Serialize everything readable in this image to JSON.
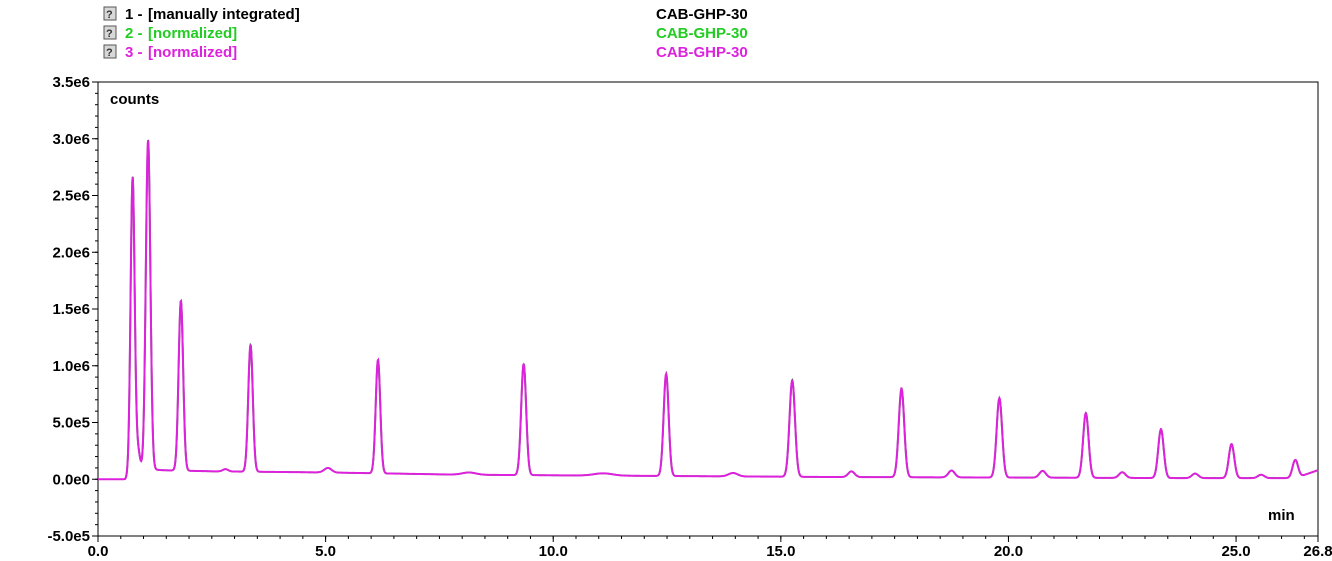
{
  "chart_data": {
    "type": "line",
    "xlabel": "min",
    "ylabel": "counts",
    "xlim": [
      0,
      26.8
    ],
    "ylim": [
      -500000,
      3500000
    ],
    "x_ticks": [
      {
        "value": 0,
        "label": "0.0"
      },
      {
        "value": 5,
        "label": "5.0"
      },
      {
        "value": 10,
        "label": "10.0"
      },
      {
        "value": 15,
        "label": "15.0"
      },
      {
        "value": 20,
        "label": "20.0"
      },
      {
        "value": 25,
        "label": "25.0"
      },
      {
        "value": 26.8,
        "label": "26.8"
      }
    ],
    "y_ticks": [
      {
        "value": 3500000,
        "label": "3.5e6"
      },
      {
        "value": 3000000,
        "label": "3.0e6"
      },
      {
        "value": 2500000,
        "label": "2.5e6"
      },
      {
        "value": 2000000,
        "label": "2.0e6"
      },
      {
        "value": 1500000,
        "label": "1.5e6"
      },
      {
        "value": 1000000,
        "label": "1.0e6"
      },
      {
        "value": 500000,
        "label": "5.0e5"
      },
      {
        "value": 0,
        "label": "0.0e0"
      },
      {
        "value": -500000,
        "label": "-5.0e5"
      }
    ],
    "series": [
      {
        "number": "1 -",
        "name": "[manually integrated]",
        "sample": "CAB-GHP-30",
        "color": "#000000",
        "line_color": "#3a5a3a",
        "scale": 1.0
      },
      {
        "number": "2 -",
        "name": "[normalized]",
        "sample": "CAB-GHP-30",
        "color": "#22cc22",
        "line_color": "#22cc22",
        "scale": 0.99
      },
      {
        "number": "3 -",
        "name": "[normalized]",
        "sample": "CAB-GHP-30",
        "color": "#dd22dd",
        "line_color": "#dd22dd",
        "scale": 1.0
      }
    ],
    "baseline": [
      [
        0,
        0
      ],
      [
        0.6,
        0
      ],
      [
        0.85,
        100000
      ],
      [
        1.4,
        80000
      ],
      [
        2.5,
        70000
      ],
      [
        5,
        60000
      ],
      [
        8,
        40000
      ],
      [
        12,
        30000
      ],
      [
        16,
        20000
      ],
      [
        20,
        15000
      ],
      [
        24,
        10000
      ],
      [
        26.3,
        10000
      ],
      [
        26.8,
        80000
      ]
    ],
    "peaks": [
      {
        "t": 0.76,
        "h": 2600000,
        "w": 0.045
      },
      {
        "t": 0.88,
        "h": 150000,
        "w": 0.04
      },
      {
        "t": 1.1,
        "h": 2900000,
        "w": 0.05
      },
      {
        "t": 1.82,
        "h": 1500000,
        "w": 0.05
      },
      {
        "t": 2.8,
        "h": 20000,
        "w": 0.06
      },
      {
        "t": 3.35,
        "h": 1120000,
        "w": 0.05
      },
      {
        "t": 5.05,
        "h": 40000,
        "w": 0.08
      },
      {
        "t": 6.15,
        "h": 1000000,
        "w": 0.05
      },
      {
        "t": 8.15,
        "h": 20000,
        "w": 0.15
      },
      {
        "t": 9.35,
        "h": 980000,
        "w": 0.055
      },
      {
        "t": 11.1,
        "h": 20000,
        "w": 0.2
      },
      {
        "t": 12.48,
        "h": 900000,
        "w": 0.055
      },
      {
        "t": 13.95,
        "h": 30000,
        "w": 0.1
      },
      {
        "t": 15.25,
        "h": 850000,
        "w": 0.06
      },
      {
        "t": 16.55,
        "h": 50000,
        "w": 0.07
      },
      {
        "t": 17.65,
        "h": 780000,
        "w": 0.06
      },
      {
        "t": 18.75,
        "h": 60000,
        "w": 0.07
      },
      {
        "t": 19.8,
        "h": 700000,
        "w": 0.06
      },
      {
        "t": 20.75,
        "h": 60000,
        "w": 0.07
      },
      {
        "t": 21.7,
        "h": 570000,
        "w": 0.06
      },
      {
        "t": 22.5,
        "h": 50000,
        "w": 0.07
      },
      {
        "t": 23.35,
        "h": 430000,
        "w": 0.06
      },
      {
        "t": 24.1,
        "h": 40000,
        "w": 0.07
      },
      {
        "t": 24.9,
        "h": 300000,
        "w": 0.06
      },
      {
        "t": 25.55,
        "h": 30000,
        "w": 0.07
      },
      {
        "t": 26.3,
        "h": 160000,
        "w": 0.06
      }
    ]
  }
}
